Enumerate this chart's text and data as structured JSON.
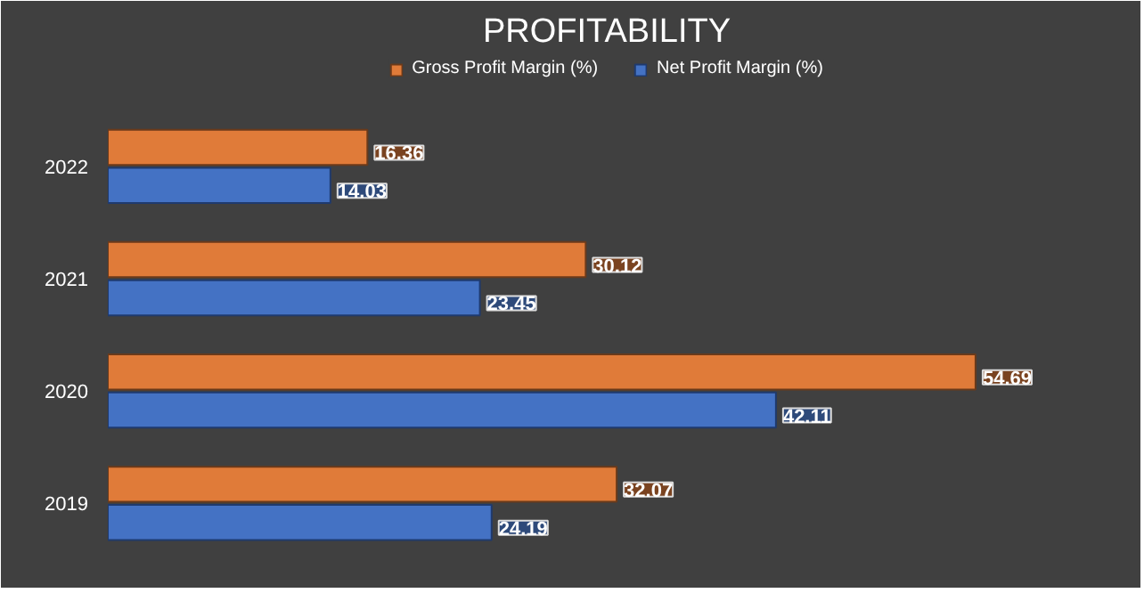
{
  "chart_data": {
    "type": "bar",
    "title": "PROFITABILITY",
    "orientation": "horizontal",
    "categories": [
      "2022",
      "2021",
      "2020",
      "2019"
    ],
    "series": [
      {
        "name": "Gross Profit Margin (%)",
        "color": "#e07b39",
        "values": [
          16.36,
          30.12,
          54.69,
          32.07
        ]
      },
      {
        "name": "Net Profit Margin (%)",
        "color": "#4472c4",
        "values": [
          14.03,
          23.45,
          42.11,
          24.19
        ]
      }
    ],
    "data_labels": true,
    "legend": "top"
  }
}
